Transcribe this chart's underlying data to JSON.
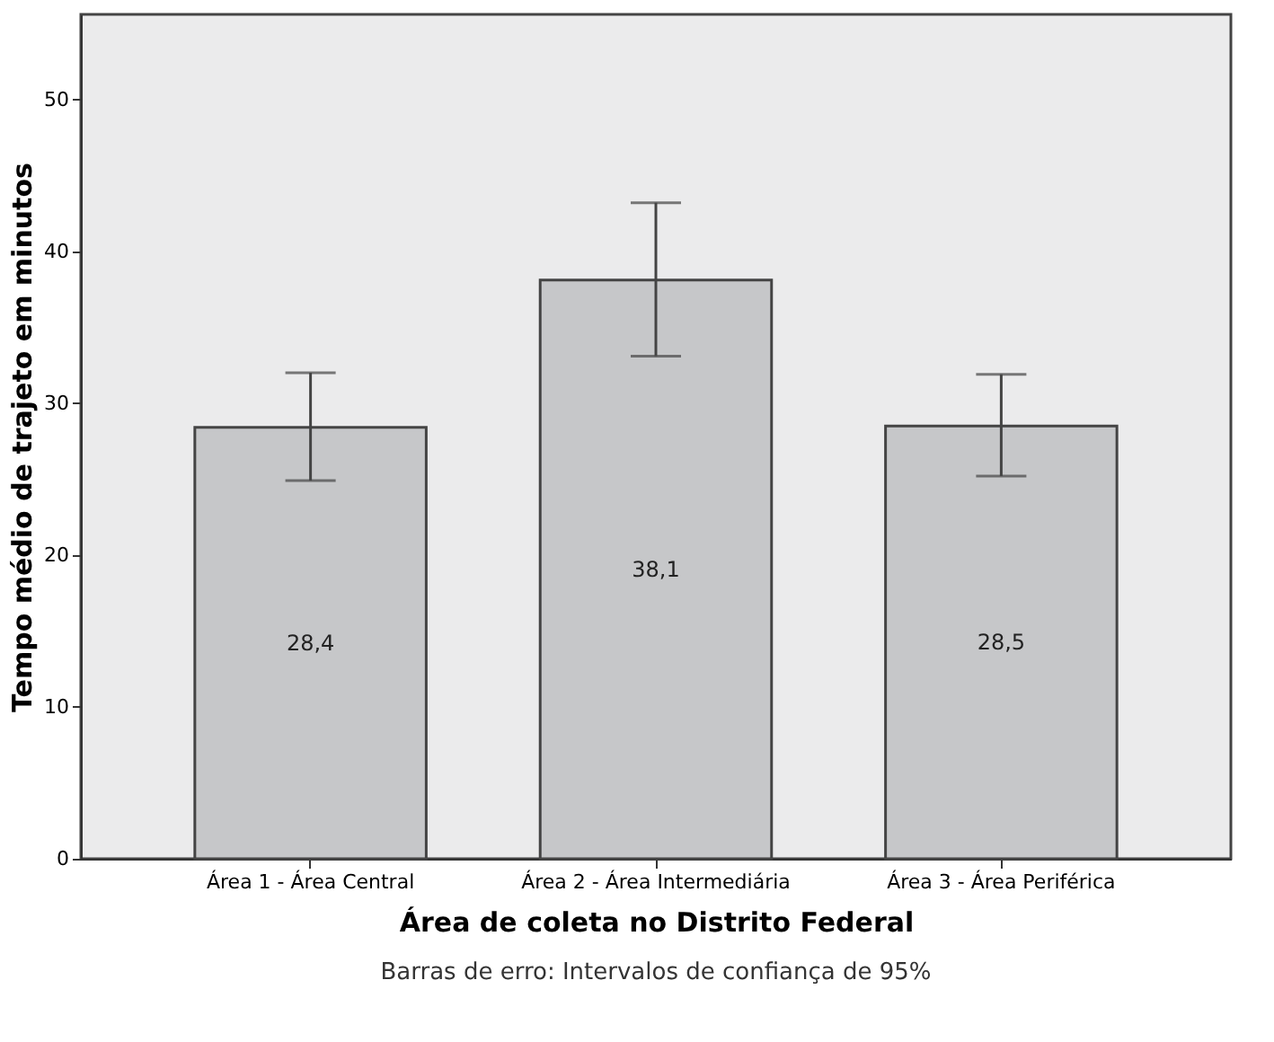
{
  "chart_data": {
    "type": "bar",
    "categories": [
      "Área 1 - Área Central",
      "Área 2 - Área Intermediária",
      "Área 3 - Área Periférica"
    ],
    "values": [
      28.4,
      38.1,
      28.5
    ],
    "value_labels": [
      "28,4",
      "38,1",
      "28,5"
    ],
    "errors": [
      [
        24.9,
        32.0
      ],
      [
        33.1,
        43.2
      ],
      [
        25.2,
        31.9
      ]
    ],
    "color": "#c6c7c9",
    "xlabel": "Área de coleta no Distrito Federal",
    "ylabel": "Tempo médio de trajeto em minutos",
    "ylim": [
      0,
      55.6
    ],
    "yticks": [
      0,
      10,
      20,
      30,
      40,
      50
    ],
    "grid": false,
    "annotations": [
      "Barras de erro: Intervalos de confiança de 95%"
    ]
  }
}
